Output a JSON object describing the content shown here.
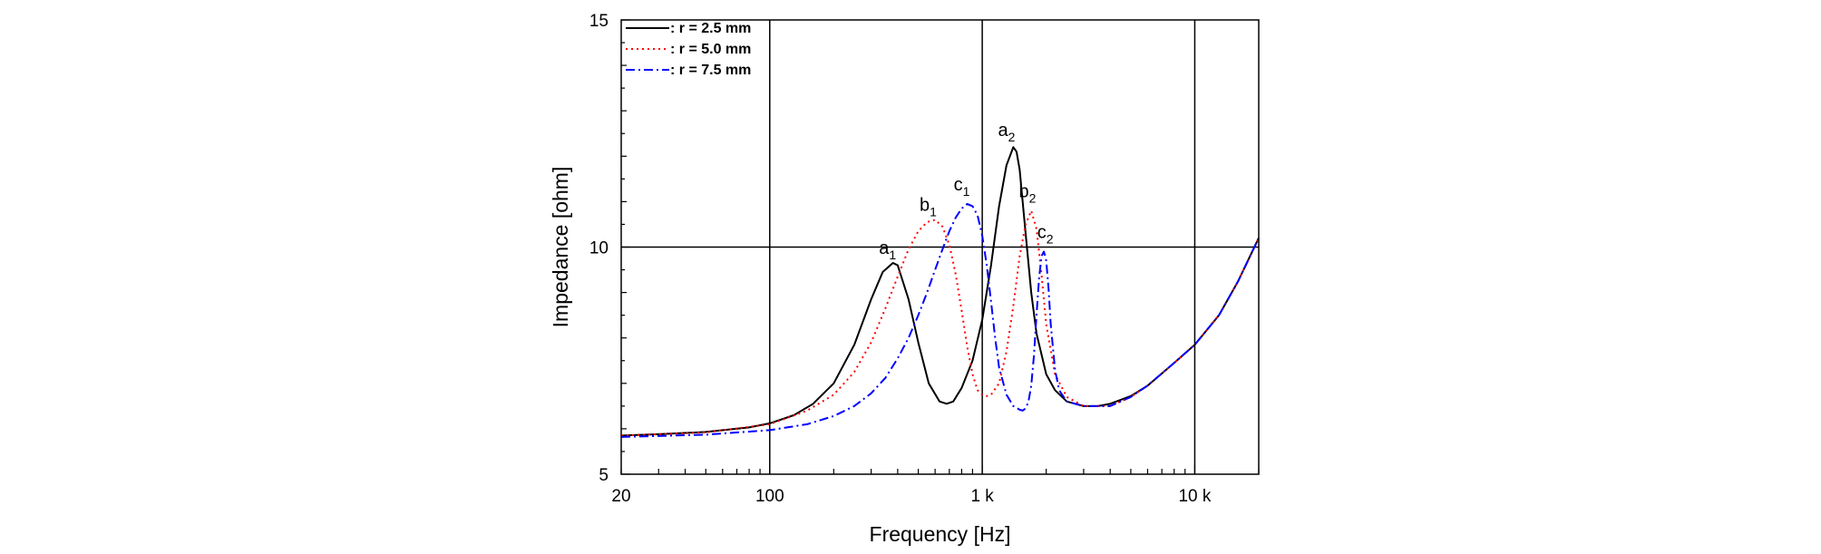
{
  "chart_data": {
    "type": "line",
    "xlabel": "Frequency [Hz]",
    "ylabel": "Impedance [ohm]",
    "xscale": "log",
    "xlim": [
      20,
      20000
    ],
    "ylim": [
      5,
      15
    ],
    "grid": true,
    "x_ticks": [
      {
        "value": 20,
        "label": "20"
      },
      {
        "value": 100,
        "label": "100"
      },
      {
        "value": 1000,
        "label": "1 k"
      },
      {
        "value": 10000,
        "label": "10 k"
      }
    ],
    "y_ticks": [
      {
        "value": 5,
        "label": "5"
      },
      {
        "value": 10,
        "label": "10"
      },
      {
        "value": 15,
        "label": "15"
      }
    ],
    "legend_position": "top-left",
    "series": [
      {
        "name": ": r = 2.5 mm",
        "color": "#000000",
        "dash": "solid",
        "x": [
          20,
          30,
          50,
          80,
          100,
          130,
          160,
          200,
          250,
          300,
          340,
          380,
          400,
          450,
          500,
          560,
          630,
          680,
          730,
          800,
          900,
          1000,
          1100,
          1200,
          1300,
          1400,
          1450,
          1500,
          1600,
          1700,
          1800,
          2000,
          2200,
          2500,
          3000,
          3500,
          4000,
          5000,
          6000,
          8000,
          10000,
          13000,
          16000,
          20000
        ],
        "y": [
          5.85,
          5.88,
          5.93,
          6.03,
          6.12,
          6.3,
          6.55,
          7.0,
          7.85,
          8.85,
          9.45,
          9.65,
          9.6,
          8.85,
          7.9,
          7.0,
          6.6,
          6.55,
          6.6,
          6.9,
          7.5,
          8.4,
          9.6,
          10.9,
          11.8,
          12.2,
          12.1,
          11.7,
          10.3,
          9.0,
          8.1,
          7.2,
          6.85,
          6.6,
          6.5,
          6.5,
          6.55,
          6.72,
          6.95,
          7.45,
          7.85,
          8.5,
          9.25,
          10.2
        ]
      },
      {
        "name": ": r = 5.0 mm",
        "color": "#ff0000",
        "dash": "dotted",
        "x": [
          20,
          50,
          100,
          150,
          200,
          250,
          300,
          350,
          400,
          450,
          500,
          550,
          600,
          650,
          700,
          750,
          800,
          850,
          900,
          950,
          1000,
          1050,
          1100,
          1200,
          1300,
          1400,
          1500,
          1600,
          1700,
          1800,
          1900,
          2000,
          2200,
          2500,
          3000,
          4000,
          5000,
          6000,
          8000,
          10000,
          13000,
          16000,
          20000
        ],
        "y": [
          5.85,
          5.92,
          6.1,
          6.4,
          6.75,
          7.25,
          7.9,
          8.65,
          9.35,
          9.95,
          10.35,
          10.55,
          10.6,
          10.45,
          10.05,
          9.4,
          8.6,
          7.8,
          7.2,
          6.85,
          6.75,
          6.72,
          6.75,
          7.0,
          7.7,
          8.7,
          9.8,
          10.5,
          10.8,
          10.4,
          9.4,
          8.3,
          7.2,
          6.7,
          6.5,
          6.5,
          6.7,
          6.95,
          7.45,
          7.85,
          8.5,
          9.25,
          10.2
        ]
      },
      {
        "name": ": r = 7.5 mm",
        "color": "#0000ff",
        "dash": "dashdot",
        "x": [
          20,
          50,
          100,
          150,
          200,
          250,
          300,
          350,
          400,
          450,
          500,
          550,
          600,
          650,
          700,
          750,
          800,
          850,
          900,
          950,
          1000,
          1050,
          1100,
          1150,
          1200,
          1300,
          1400,
          1500,
          1550,
          1600,
          1650,
          1700,
          1750,
          1800,
          1850,
          1900,
          1950,
          2000,
          2050,
          2100,
          2200,
          2300,
          2500,
          3000,
          4000,
          5000,
          6000,
          8000,
          10000,
          13000,
          16000,
          20000
        ],
        "y": [
          5.82,
          5.87,
          5.97,
          6.1,
          6.28,
          6.5,
          6.78,
          7.12,
          7.55,
          8.0,
          8.5,
          9.0,
          9.5,
          9.95,
          10.35,
          10.65,
          10.85,
          10.95,
          10.9,
          10.7,
          10.25,
          9.6,
          8.8,
          8.0,
          7.35,
          6.75,
          6.5,
          6.42,
          6.4,
          6.45,
          6.6,
          6.95,
          7.6,
          8.5,
          9.3,
          9.8,
          9.9,
          9.7,
          9.1,
          8.3,
          7.3,
          6.85,
          6.6,
          6.5,
          6.5,
          6.7,
          6.95,
          7.45,
          7.85,
          8.5,
          9.25,
          10.2
        ]
      }
    ],
    "annotations": [
      {
        "letter": "a",
        "sub": "1",
        "x": 380,
        "y": 9.85
      },
      {
        "letter": "b",
        "sub": "1",
        "x": 590,
        "y": 10.8
      },
      {
        "letter": "c",
        "sub": "1",
        "x": 850,
        "y": 11.25
      },
      {
        "letter": "a",
        "sub": "2",
        "x": 1380,
        "y": 12.45
      },
      {
        "letter": "b",
        "sub": "2",
        "x": 1730,
        "y": 11.1
      },
      {
        "letter": "c",
        "sub": "2",
        "x": 2100,
        "y": 10.2
      }
    ]
  }
}
